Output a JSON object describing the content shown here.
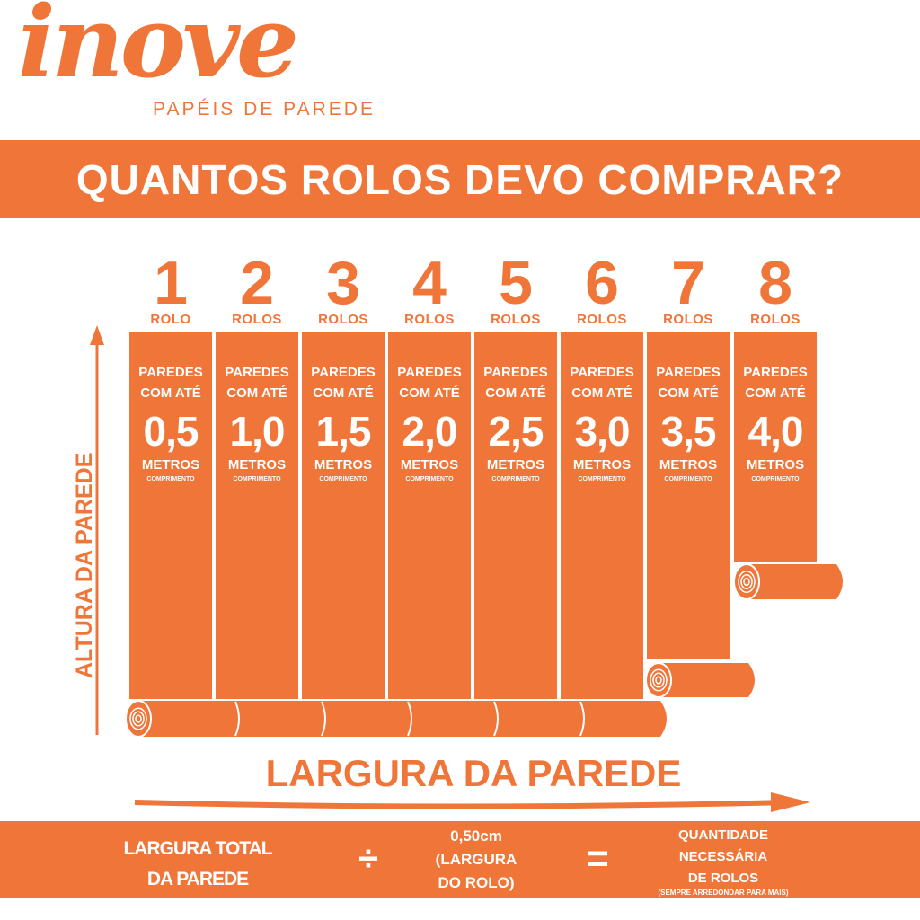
{
  "logo": {
    "word": "inove",
    "tagline": "PAPÉIS DE PAREDE"
  },
  "title": "QUANTOS ROLOS DEVO COMPRAR?",
  "columns": [
    {
      "rolls": "1",
      "unit": "ROLO",
      "line1": "PAREDES",
      "line2": "COM ATÉ",
      "value": "0,5",
      "metros": "METROS",
      "comprimento": "COMPRIMENTO"
    },
    {
      "rolls": "2",
      "unit": "ROLOS",
      "line1": "PAREDES",
      "line2": "COM ATÉ",
      "value": "1,0",
      "metros": "METROS",
      "comprimento": "COMPRIMENTO"
    },
    {
      "rolls": "3",
      "unit": "ROLOS",
      "line1": "PAREDES",
      "line2": "COM ATÉ",
      "value": "1,5",
      "metros": "METROS",
      "comprimento": "COMPRIMENTO"
    },
    {
      "rolls": "4",
      "unit": "ROLOS",
      "line1": "PAREDES",
      "line2": "COM ATÉ",
      "value": "2,0",
      "metros": "METROS",
      "comprimento": "COMPRIMENTO"
    },
    {
      "rolls": "5",
      "unit": "ROLOS",
      "line1": "PAREDES",
      "line2": "COM ATÉ",
      "value": "2,5",
      "metros": "METROS",
      "comprimento": "COMPRIMENTO"
    },
    {
      "rolls": "6",
      "unit": "ROLOS",
      "line1": "PAREDES",
      "line2": "COM ATÉ",
      "value": "3,0",
      "metros": "METROS",
      "comprimento": "COMPRIMENTO"
    },
    {
      "rolls": "7",
      "unit": "ROLOS",
      "line1": "PAREDES",
      "line2": "COM ATÉ",
      "value": "3,5",
      "metros": "METROS",
      "comprimento": "COMPRIMENTO"
    },
    {
      "rolls": "8",
      "unit": "ROLOS",
      "line1": "PAREDES",
      "line2": "COM ATÉ",
      "value": "4,0",
      "metros": "METROS",
      "comprimento": "COMPRIMENTO"
    }
  ],
  "axis": {
    "y": "ALTURA DA PAREDE",
    "x": "LARGURA DA PAREDE"
  },
  "formula": {
    "left1": "LARGURA TOTAL",
    "left2": "DA PAREDE",
    "divide": "÷",
    "mid1": "0,50cm",
    "mid2": "(LARGURA",
    "mid3": "DO ROLO)",
    "equals": "=",
    "right1": "QUANTIDADE",
    "right2": "NECESSÁRIA",
    "right3": "DE ROLOS",
    "note": "(SEMPRE ARREDONDAR PARA MAIS)"
  },
  "colors": {
    "brand": "#f07539",
    "background": "#ffffff"
  }
}
